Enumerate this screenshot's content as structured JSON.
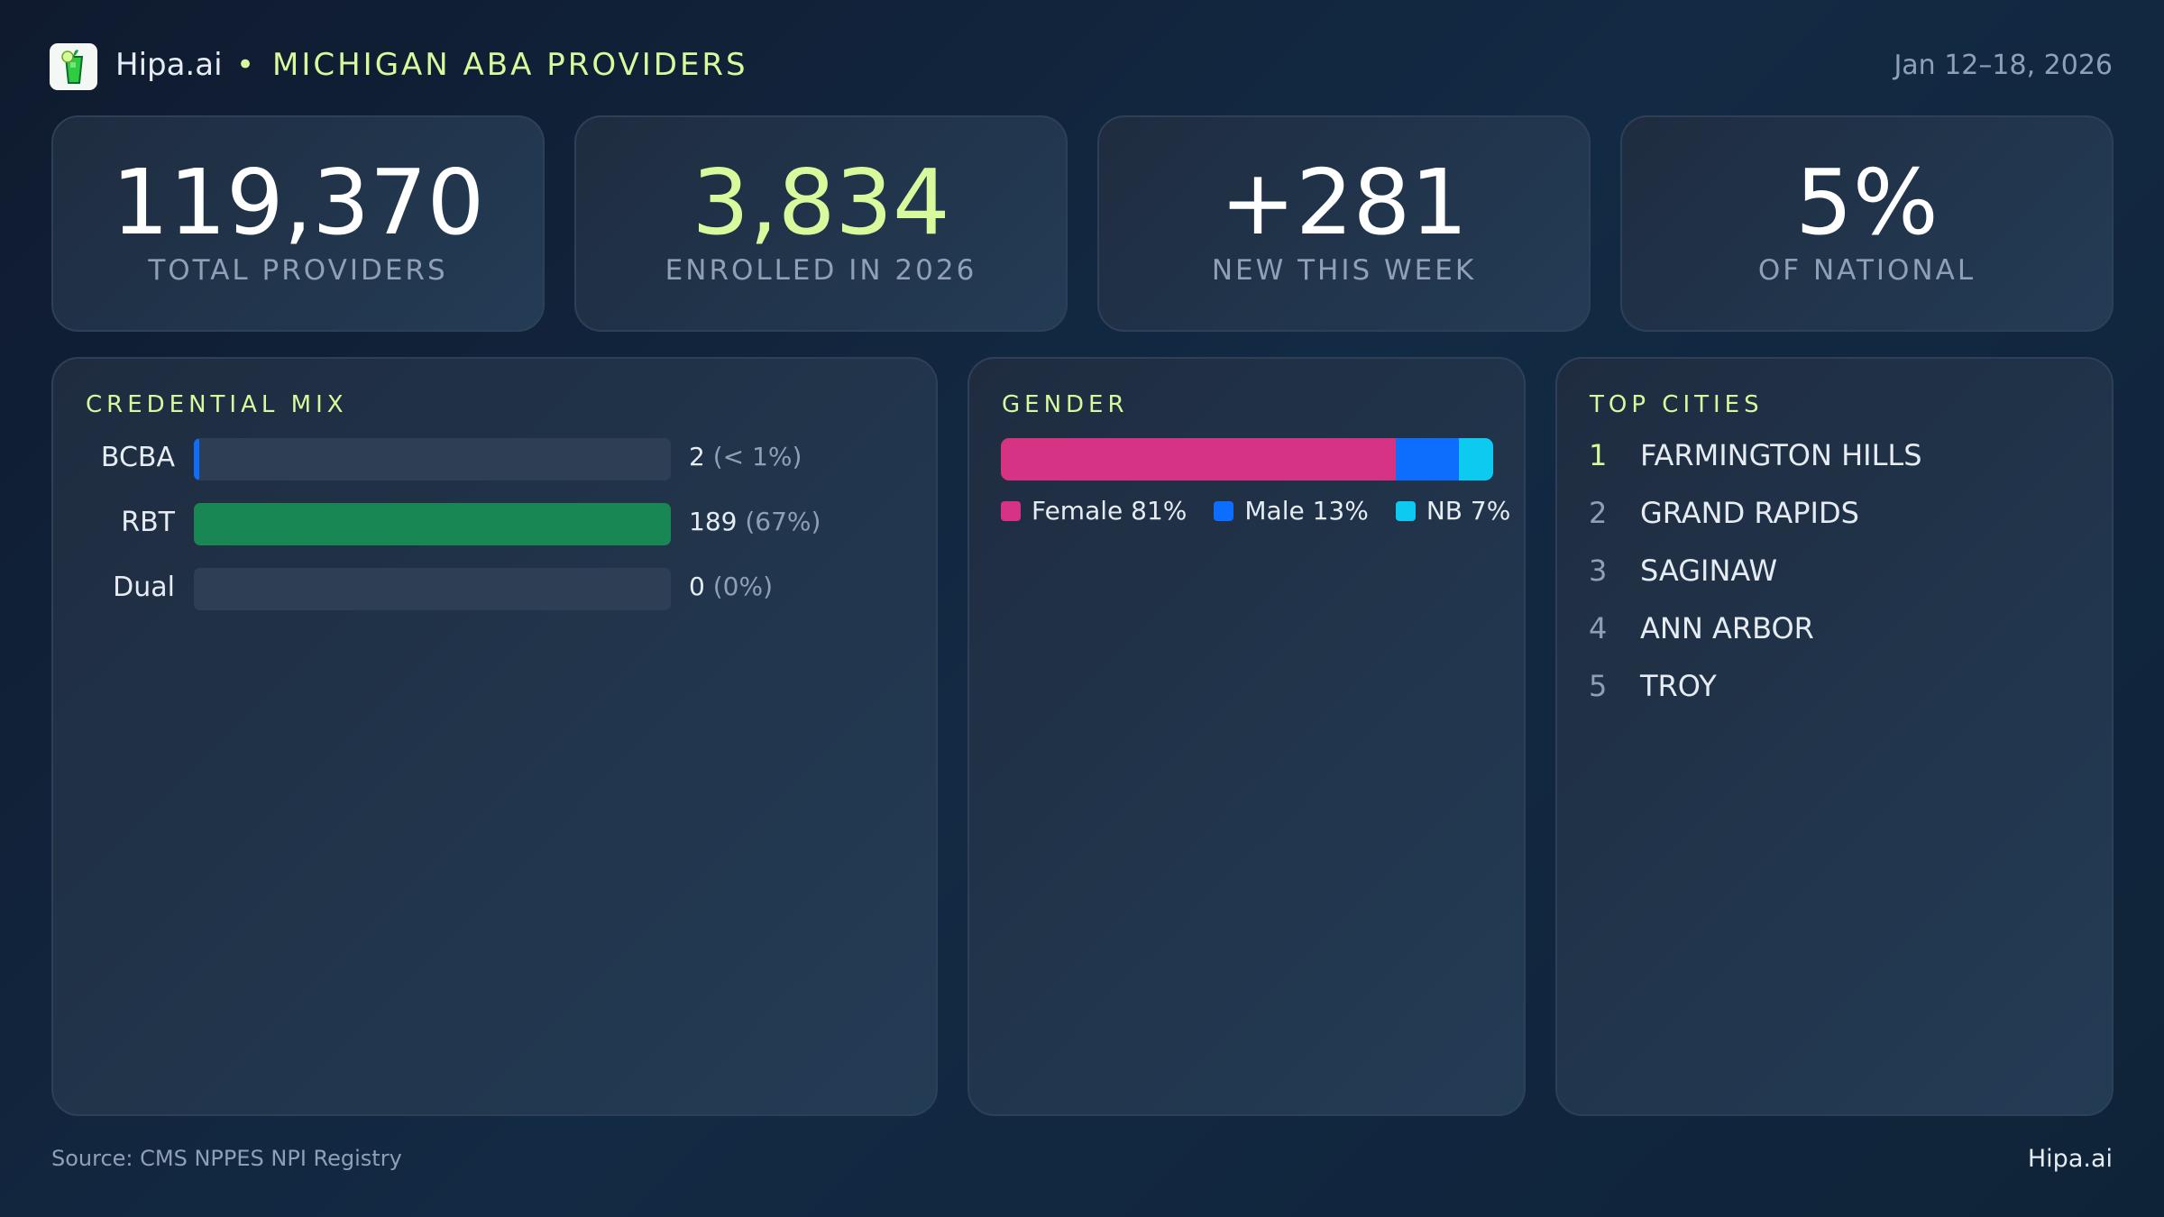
{
  "header": {
    "brand": "Hipa.ai",
    "separator": "•",
    "title": "MICHIGAN ABA PROVIDERS",
    "date_range": "Jan 12–18, 2026",
    "logo_icon": "mojito-glass-icon"
  },
  "kpis": [
    {
      "value": "119,370",
      "label": "TOTAL PROVIDERS",
      "color": "#ffffff"
    },
    {
      "value": "3,834",
      "label": "ENROLLED IN 2026",
      "color": "#d9f99d"
    },
    {
      "value": "+281",
      "label": "NEW THIS WEEK",
      "color": "#ffffff"
    },
    {
      "value": "5%",
      "label": "OF NATIONAL",
      "color": "#ffffff"
    }
  ],
  "credential": {
    "title": "CREDENTIAL MIX",
    "rows": [
      {
        "label": "BCBA",
        "count": "2",
        "pct": "(< 1%)",
        "value": 2,
        "color": "#0d6efd"
      },
      {
        "label": "RBT",
        "count": "189",
        "pct": "(67%)",
        "value": 189,
        "color": "#198754"
      },
      {
        "label": "Dual",
        "count": "0",
        "pct": "(0%)",
        "value": 0,
        "color": "#198754"
      }
    ]
  },
  "gender": {
    "title": "GENDER",
    "segments": [
      {
        "label": "Female 81%",
        "share": 81,
        "color": "#d63384"
      },
      {
        "label": "Male 13%",
        "share": 13,
        "color": "#0d6efd"
      },
      {
        "label": "NB 7%",
        "share": 7,
        "color": "#0dcaf0"
      }
    ]
  },
  "cities": {
    "title": "TOP CITIES",
    "items": [
      {
        "rank": "1",
        "name": "FARMINGTON HILLS"
      },
      {
        "rank": "2",
        "name": "GRAND RAPIDS"
      },
      {
        "rank": "3",
        "name": "SAGINAW"
      },
      {
        "rank": "4",
        "name": "ANN ARBOR"
      },
      {
        "rank": "5",
        "name": "TROY"
      }
    ]
  },
  "footer": {
    "source": "Source: CMS NPPES NPI Registry",
    "brand": "Hipa.ai"
  },
  "colors": {
    "accent": "#d9f99d",
    "background": "#0f1a2e"
  }
}
